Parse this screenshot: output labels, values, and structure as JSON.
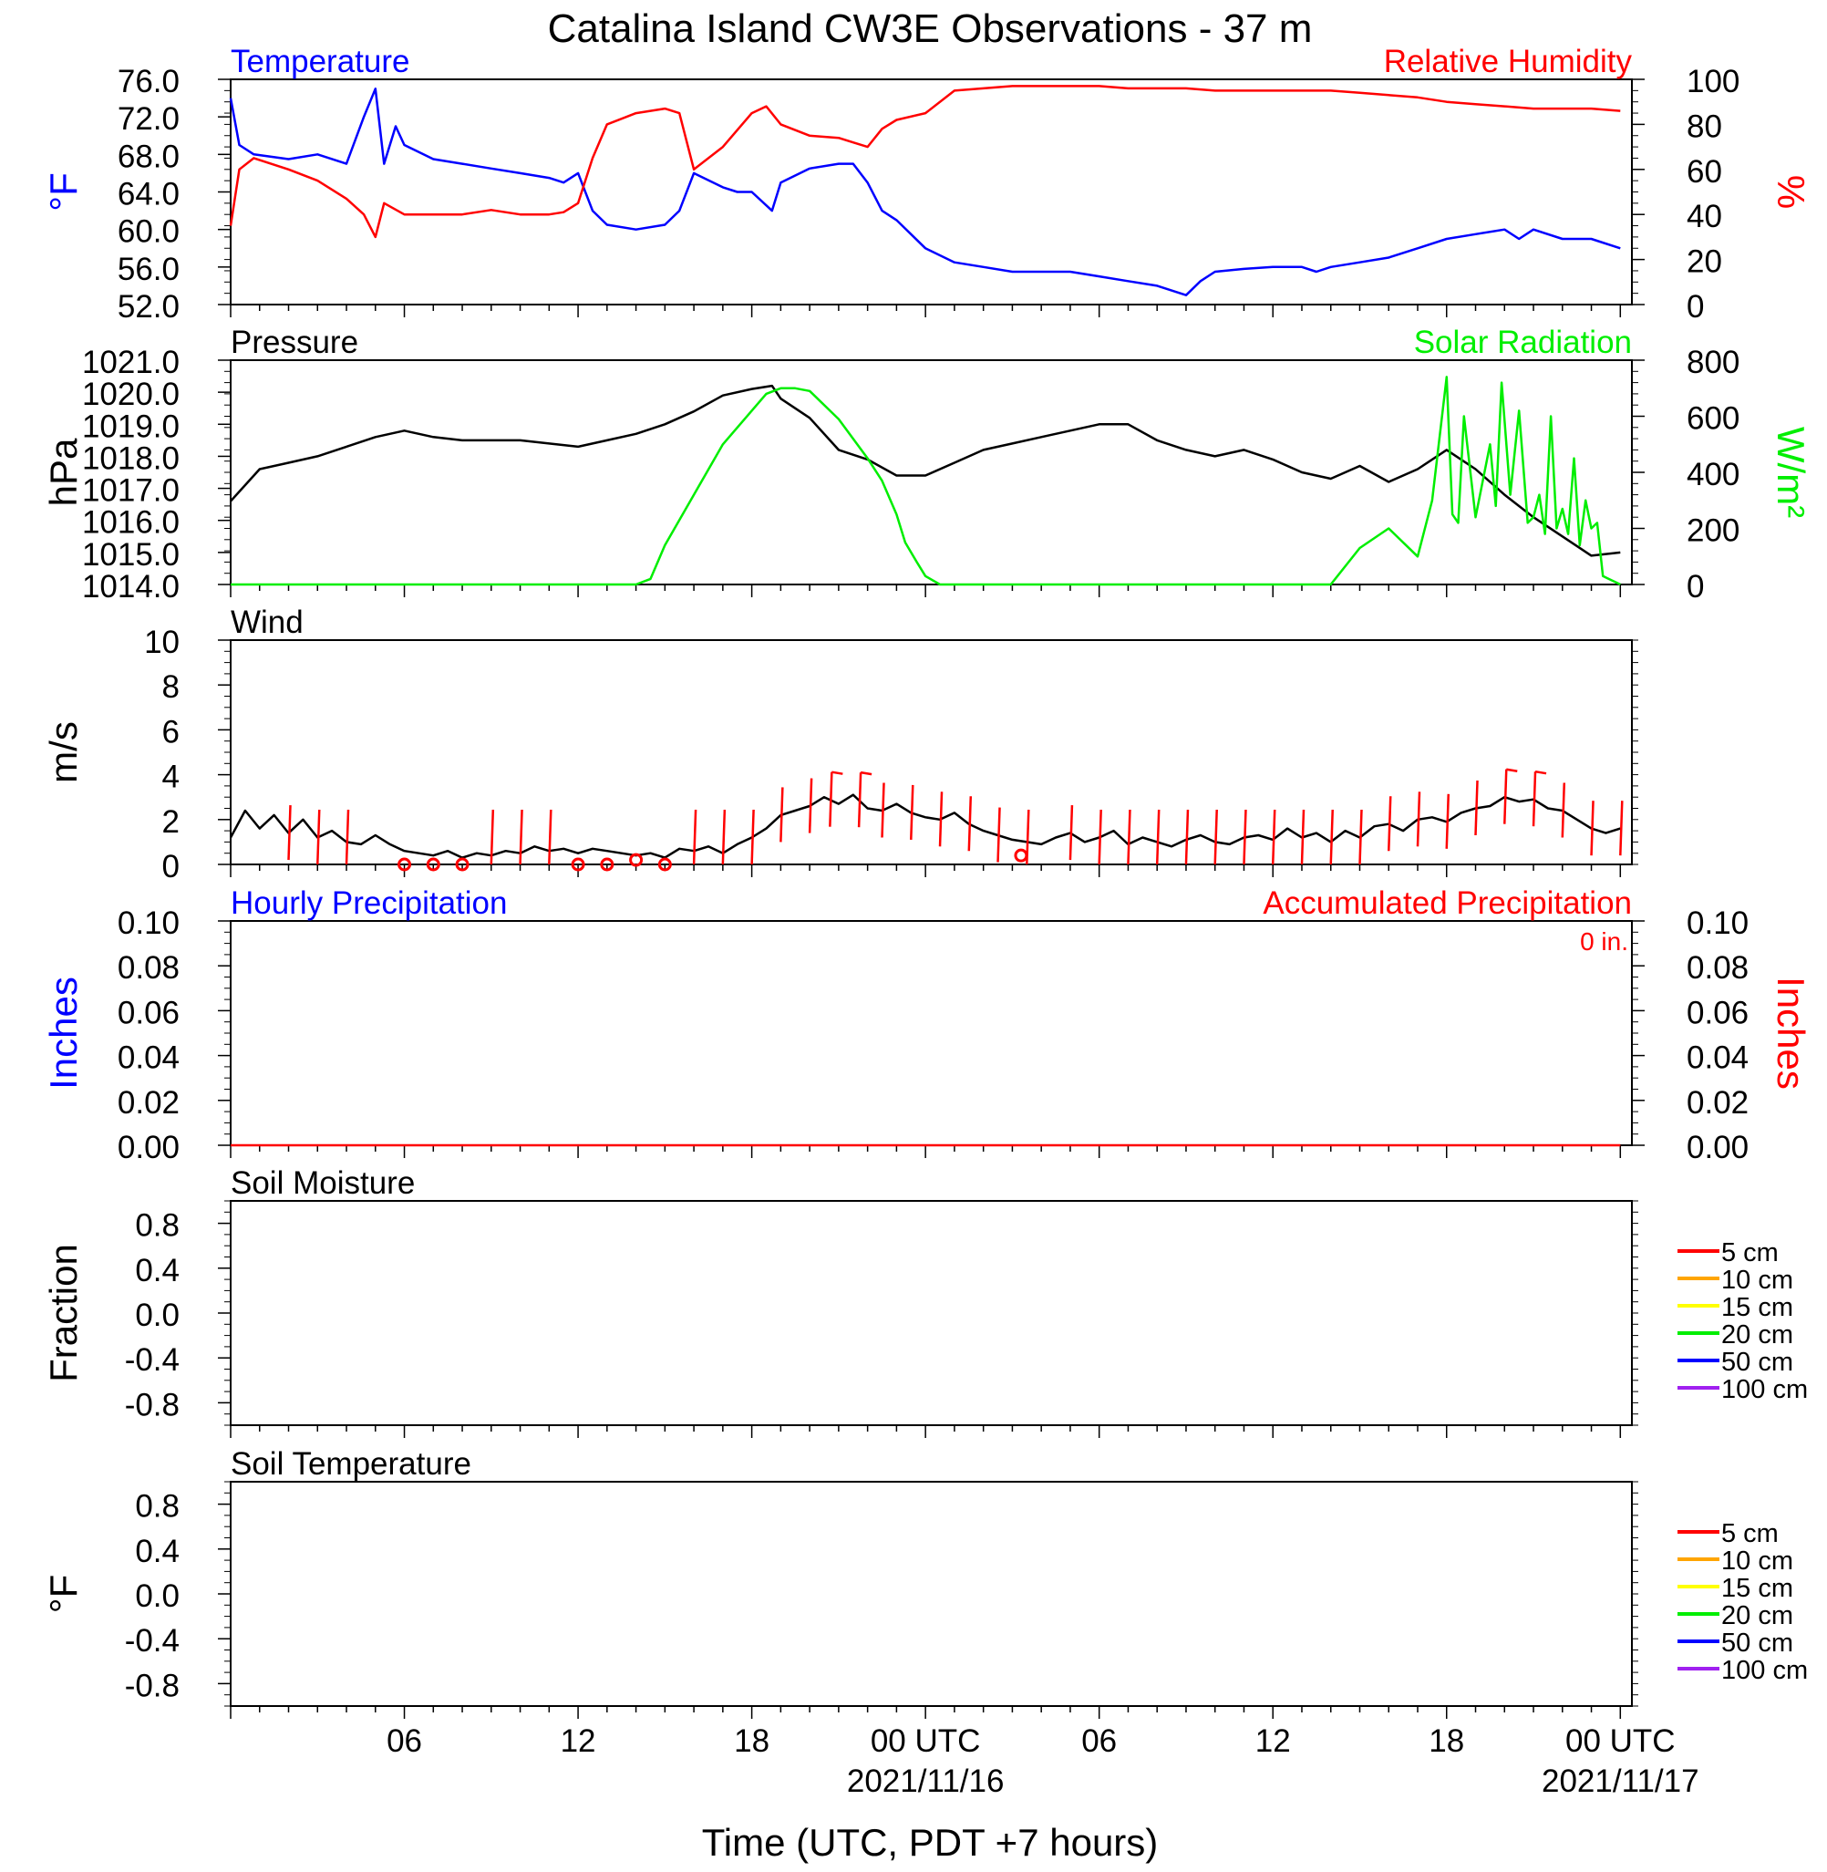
{
  "title": "Catalina Island CW3E Observations - 37 m",
  "xlabel": "Time (UTC, PDT +7 hours)",
  "x_ticks": [
    {
      "hour": 6,
      "label": "06",
      "date": ""
    },
    {
      "hour": 12,
      "label": "12",
      "date": ""
    },
    {
      "hour": 18,
      "label": "18",
      "date": ""
    },
    {
      "hour": 24,
      "label": "00 UTC",
      "date": "2021/11/16"
    },
    {
      "hour": 30,
      "label": "06",
      "date": ""
    },
    {
      "hour": 36,
      "label": "12",
      "date": ""
    },
    {
      "hour": 42,
      "label": "18",
      "date": ""
    },
    {
      "hour": 48,
      "label": "00 UTC",
      "date": "2021/11/17"
    }
  ],
  "colors": {
    "blue": "#0000ff",
    "red": "#ff0000",
    "green": "#00ee00",
    "black": "#000000"
  },
  "chart_data": [
    {
      "type": "line",
      "title_left": "Temperature",
      "title_right": "Relative Humidity",
      "ylabel_left": "°F",
      "ylabel_right": "%",
      "ylim_left": [
        52,
        76
      ],
      "ylim_right": [
        0,
        100
      ],
      "yticks_left": [
        "76.0",
        "72.0",
        "68.0",
        "64.0",
        "60.0",
        "56.0",
        "52.0"
      ],
      "yticks_right": [
        "100",
        "80",
        "60",
        "40",
        "20",
        "0"
      ],
      "series": [
        {
          "name": "Temperature",
          "color": "#0000ff",
          "axis": "left",
          "x": [
            0,
            0.3,
            0.8,
            2,
            3,
            4,
            4.6,
            5,
            5.3,
            5.7,
            6,
            7,
            8,
            9,
            10,
            11,
            11.5,
            12,
            12.5,
            13,
            14,
            15,
            15.5,
            16,
            17,
            17.5,
            18,
            18.7,
            19,
            20,
            21,
            21.5,
            22,
            22.5,
            23,
            24,
            25,
            26,
            27,
            28,
            29,
            30,
            31,
            32,
            33,
            33.5,
            34,
            35,
            36,
            37,
            37.5,
            38,
            39,
            40,
            41,
            42,
            43,
            44,
            44.5,
            45,
            46,
            47,
            48
          ],
          "y": [
            74,
            69,
            68,
            67.5,
            68,
            67,
            72,
            75,
            67,
            71,
            69,
            67.5,
            67,
            66.5,
            66,
            65.5,
            65,
            66,
            62,
            60.5,
            60,
            60.5,
            62,
            66,
            64.5,
            64,
            64,
            62,
            65,
            66.5,
            67,
            67,
            65,
            62,
            61,
            58,
            56.5,
            56,
            55.5,
            55.5,
            55.5,
            55,
            54.5,
            54,
            53,
            54.5,
            55.5,
            55.8,
            56,
            56,
            55.5,
            56,
            56.5,
            57,
            58,
            59,
            59.5,
            60,
            59,
            60,
            59,
            59,
            58
          ]
        },
        {
          "name": "Relative Humidity",
          "color": "#ff0000",
          "axis": "right",
          "x": [
            0,
            0.3,
            0.8,
            2,
            3,
            4,
            4.6,
            5,
            5.3,
            6,
            7,
            8,
            9,
            10,
            11,
            11.5,
            12,
            12.5,
            13,
            14,
            15,
            15.5,
            16,
            17,
            18,
            18.5,
            19,
            20,
            21,
            21.5,
            22,
            22.5,
            23,
            24,
            25,
            26,
            27,
            28,
            29,
            30,
            31,
            32,
            33,
            34,
            35,
            36,
            37,
            38,
            39,
            40,
            41,
            42,
            43,
            44,
            45,
            46,
            47,
            48
          ],
          "y": [
            35,
            60,
            65,
            60,
            55,
            47,
            40,
            30,
            45,
            40,
            40,
            40,
            42,
            40,
            40,
            41,
            45,
            65,
            80,
            85,
            87,
            85,
            60,
            70,
            85,
            88,
            80,
            75,
            74,
            72,
            70,
            78,
            82,
            85,
            95,
            96,
            97,
            97,
            97,
            97,
            96,
            96,
            96,
            95,
            95,
            95,
            95,
            95,
            94,
            93,
            92,
            90,
            89,
            88,
            87,
            87,
            87,
            86
          ]
        }
      ]
    },
    {
      "type": "line",
      "title_left": "Pressure",
      "title_right": "Solar Radiation",
      "ylabel_left": "hPa",
      "ylabel_right": "W/m²",
      "ylim_left": [
        1014,
        1021
      ],
      "ylim_right": [
        0,
        800
      ],
      "yticks_left": [
        "1021.0",
        "1020.0",
        "1019.0",
        "1018.0",
        "1017.0",
        "1016.0",
        "1015.0",
        "1014.0"
      ],
      "yticks_right": [
        "800",
        "600",
        "400",
        "200",
        "0"
      ],
      "series": [
        {
          "name": "Pressure",
          "color": "#000000",
          "axis": "left",
          "x": [
            0,
            1,
            2,
            3,
            4,
            5,
            6,
            7,
            8,
            9,
            10,
            11,
            12,
            13,
            14,
            15,
            16,
            17,
            18,
            18.7,
            19,
            20,
            21,
            22,
            23,
            24,
            25,
            26,
            27,
            28,
            29,
            30,
            31,
            32,
            33,
            34,
            35,
            36,
            37,
            38,
            39,
            40,
            41,
            42,
            43,
            44,
            45,
            46,
            47,
            48
          ],
          "y": [
            1016.6,
            1017.6,
            1017.8,
            1018.0,
            1018.3,
            1018.6,
            1018.8,
            1018.6,
            1018.5,
            1018.5,
            1018.5,
            1018.4,
            1018.3,
            1018.5,
            1018.7,
            1019.0,
            1019.4,
            1019.9,
            1020.1,
            1020.2,
            1019.8,
            1019.2,
            1018.2,
            1017.9,
            1017.4,
            1017.4,
            1017.8,
            1018.2,
            1018.4,
            1018.6,
            1018.8,
            1019.0,
            1019.0,
            1018.5,
            1018.2,
            1018.0,
            1018.2,
            1017.9,
            1017.5,
            1017.3,
            1017.7,
            1017.2,
            1017.6,
            1018.2,
            1017.6,
            1016.8,
            1016.1,
            1015.5,
            1014.9,
            1015.0
          ]
        },
        {
          "name": "Solar Radiation",
          "color": "#00ee00",
          "axis": "right",
          "x": [
            0,
            13,
            14,
            14.5,
            15,
            16,
            17,
            18,
            18.5,
            19,
            19.5,
            20,
            21,
            22,
            22.5,
            23,
            23.3,
            23.7,
            24,
            24.5,
            25,
            37,
            38,
            39,
            40,
            41,
            41.5,
            42,
            42.2,
            42.4,
            42.6,
            43,
            43.5,
            43.7,
            43.9,
            44.2,
            44.5,
            44.8,
            45,
            45.2,
            45.4,
            45.6,
            45.8,
            46,
            46.2,
            46.4,
            46.6,
            46.8,
            47,
            47.2,
            47.4,
            47.6,
            47.8,
            48
          ],
          "y": [
            0,
            0,
            0,
            20,
            140,
            320,
            500,
            620,
            680,
            700,
            700,
            690,
            590,
            450,
            370,
            250,
            150,
            80,
            30,
            0,
            0,
            0,
            0,
            130,
            200,
            100,
            300,
            740,
            250,
            220,
            600,
            240,
            500,
            280,
            720,
            320,
            620,
            220,
            240,
            320,
            180,
            600,
            200,
            270,
            180,
            450,
            140,
            300,
            200,
            220,
            30,
            20,
            10,
            0
          ]
        }
      ]
    },
    {
      "type": "line",
      "title_left": "Wind",
      "ylabel_left": "m/s",
      "ylim_left": [
        0,
        10
      ],
      "yticks_left": [
        "10",
        "8",
        "6",
        "4",
        "2",
        "0"
      ],
      "series": [
        {
          "name": "Wind",
          "color": "#000000",
          "axis": "left",
          "x": [
            0,
            0.5,
            1,
            1.5,
            2,
            2.5,
            3,
            3.5,
            4,
            4.5,
            5,
            5.5,
            6,
            6.5,
            7,
            7.5,
            8,
            8.5,
            9,
            9.5,
            10,
            10.5,
            11,
            11.5,
            12,
            12.5,
            13,
            13.5,
            14,
            14.5,
            15,
            15.5,
            16,
            16.5,
            17,
            17.5,
            18,
            18.5,
            19,
            19.5,
            20,
            20.5,
            21,
            21.5,
            22,
            22.5,
            23,
            23.5,
            24,
            24.5,
            25,
            25.5,
            26,
            26.5,
            27,
            27.5,
            28,
            28.5,
            29,
            29.5,
            30,
            30.5,
            31,
            31.5,
            32,
            32.5,
            33,
            33.5,
            34,
            34.5,
            35,
            35.5,
            36,
            36.5,
            37,
            37.5,
            38,
            38.5,
            39,
            39.5,
            40,
            40.5,
            41,
            41.5,
            42,
            42.5,
            43,
            43.5,
            44,
            44.5,
            45,
            45.5,
            46,
            46.5,
            47,
            47.5,
            48
          ],
          "y": [
            1.2,
            2.4,
            1.6,
            2.2,
            1.4,
            2,
            1.2,
            1.5,
            1,
            0.9,
            1.3,
            0.9,
            0.6,
            0.5,
            0.4,
            0.6,
            0.3,
            0.5,
            0.4,
            0.6,
            0.5,
            0.8,
            0.6,
            0.7,
            0.5,
            0.7,
            0.6,
            0.5,
            0.4,
            0.5,
            0.3,
            0.7,
            0.6,
            0.8,
            0.5,
            0.9,
            1.2,
            1.6,
            2.2,
            2.4,
            2.6,
            3.0,
            2.7,
            3.1,
            2.5,
            2.4,
            2.7,
            2.3,
            2.1,
            2.0,
            2.3,
            1.8,
            1.5,
            1.3,
            1.1,
            1.0,
            0.9,
            1.2,
            1.4,
            1.0,
            1.2,
            1.5,
            0.9,
            1.2,
            1.0,
            0.8,
            1.1,
            1.3,
            1.0,
            0.9,
            1.2,
            1.3,
            1.1,
            1.6,
            1.2,
            1.4,
            1.0,
            1.5,
            1.2,
            1.7,
            1.8,
            1.5,
            2.0,
            2.1,
            1.9,
            2.3,
            2.5,
            2.6,
            3.0,
            2.8,
            2.9,
            2.5,
            2.4,
            2.0,
            1.6,
            1.4,
            1.6
          ]
        }
      ],
      "barbs": {
        "color": "#ff0000",
        "x": [
          2,
          3,
          4,
          9,
          10,
          11,
          16,
          17,
          18,
          19,
          20,
          20.7,
          21.7,
          22.5,
          23.5,
          24.5,
          25.5,
          26.5,
          27.5,
          29,
          30,
          31,
          32,
          33,
          34,
          35,
          36,
          37,
          38,
          39,
          40,
          41,
          42,
          43,
          44,
          45,
          46,
          47,
          48
        ],
        "flags": [
          0,
          0,
          0,
          0,
          0,
          0,
          0,
          0,
          0,
          0,
          0,
          1,
          1,
          0,
          0,
          0,
          0,
          0,
          0,
          0,
          0,
          0,
          0,
          0,
          0,
          0,
          0,
          0,
          0,
          0,
          0,
          0,
          0,
          0,
          1,
          1,
          0,
          0,
          0
        ]
      },
      "calms": {
        "color": "#ff0000",
        "x": [
          6,
          7,
          8,
          12,
          13,
          14,
          15,
          27.3
        ],
        "y": [
          0,
          0,
          0,
          0,
          0,
          0.2,
          0,
          0.4
        ]
      }
    },
    {
      "type": "line",
      "title_left": "Hourly Precipitation",
      "title_right": "Accumulated Precipitation",
      "annotation": "0 in.",
      "ylabel_left": "Inches",
      "ylabel_right": "Inches",
      "ylim_left": [
        0,
        0.1
      ],
      "ylim_right": [
        0,
        0.1
      ],
      "yticks_left": [
        "0.10",
        "0.08",
        "0.06",
        "0.04",
        "0.02",
        "0.00"
      ],
      "yticks_right": [
        "0.10",
        "0.08",
        "0.06",
        "0.04",
        "0.02",
        "0.00"
      ],
      "series": [
        {
          "name": "Accumulated Precipitation",
          "color": "#ff0000",
          "axis": "left",
          "x": [
            0,
            48
          ],
          "y": [
            0,
            0
          ]
        }
      ]
    },
    {
      "type": "line",
      "title_left": "Soil Moisture",
      "ylabel_left": "Fraction",
      "ylim_left": [
        -1,
        1
      ],
      "yticks_left": [
        "0.8",
        "0.4",
        "0.0",
        "-0.4",
        "-0.8"
      ],
      "legend": [
        {
          "label": "5 cm",
          "color": "#ff0000"
        },
        {
          "label": "10 cm",
          "color": "#ffa500"
        },
        {
          "label": "15 cm",
          "color": "#ffff00"
        },
        {
          "label": "20 cm",
          "color": "#00ee00"
        },
        {
          "label": "50 cm",
          "color": "#0000ff"
        },
        {
          "label": "100 cm",
          "color": "#a020f0"
        }
      ],
      "series": []
    },
    {
      "type": "line",
      "title_left": "Soil Temperature",
      "ylabel_left": "°F",
      "ylim_left": [
        -1,
        1
      ],
      "yticks_left": [
        "0.8",
        "0.4",
        "0.0",
        "-0.4",
        "-0.8"
      ],
      "legend": [
        {
          "label": "5 cm",
          "color": "#ff0000"
        },
        {
          "label": "10 cm",
          "color": "#ffa500"
        },
        {
          "label": "15 cm",
          "color": "#ffff00"
        },
        {
          "label": "20 cm",
          "color": "#00ee00"
        },
        {
          "label": "50 cm",
          "color": "#0000ff"
        },
        {
          "label": "100 cm",
          "color": "#a020f0"
        }
      ],
      "series": []
    }
  ]
}
